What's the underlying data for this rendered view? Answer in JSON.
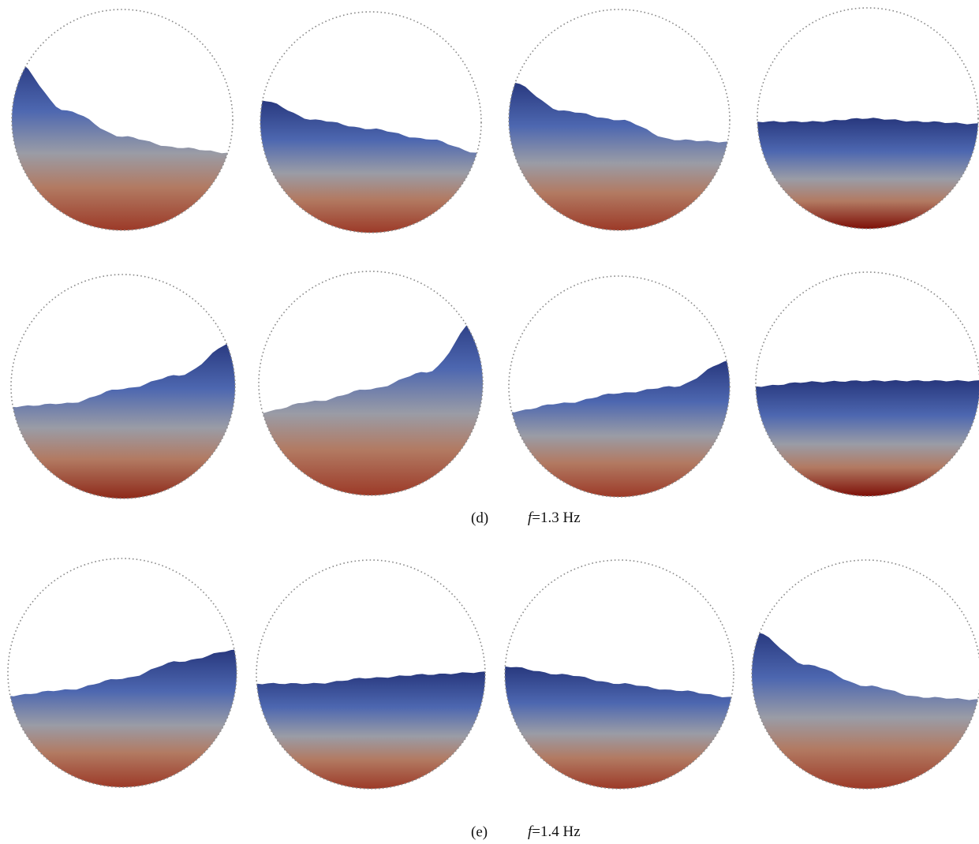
{
  "panels": [
    {
      "label": "(d)",
      "var": "f",
      "rest": "=1.3 Hz"
    },
    {
      "label": "(e)",
      "var": "f",
      "rest": "=1.4 Hz"
    }
  ]
}
